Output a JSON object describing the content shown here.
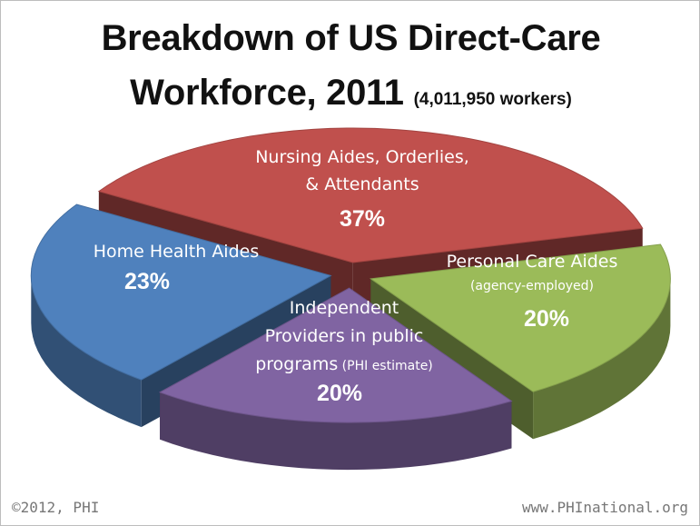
{
  "title": {
    "line1": "Breakdown of US Direct-Care",
    "line2": "Workforce, 2011",
    "subtitle": "(4,011,950 workers)"
  },
  "footer": {
    "copyright": "©2012, PHI",
    "website": "www.PHInational.org"
  },
  "chart_data": {
    "type": "pie",
    "title": "Breakdown of US Direct-Care Workforce, 2011",
    "subtitle": "(4,011,950 workers)",
    "slices": [
      {
        "label_lines": [
          "Nursing Aides, Orderlies,",
          "& Attendants"
        ],
        "percent_label": "37%",
        "value": 37,
        "color": "#c0504d"
      },
      {
        "label_lines": [
          "Personal Care Aides"
        ],
        "note": "(agency-employed)",
        "percent_label": "20%",
        "value": 20,
        "color": "#9bbb59"
      },
      {
        "label_lines": [
          "Independent",
          "Providers in public",
          "programs"
        ],
        "note": "(PHI estimate)",
        "percent_label": "20%",
        "value": 20,
        "color": "#8064a2"
      },
      {
        "label_lines": [
          "Home Health Aides"
        ],
        "percent_label": "23%",
        "value": 23,
        "color": "#4f81bd"
      }
    ]
  }
}
